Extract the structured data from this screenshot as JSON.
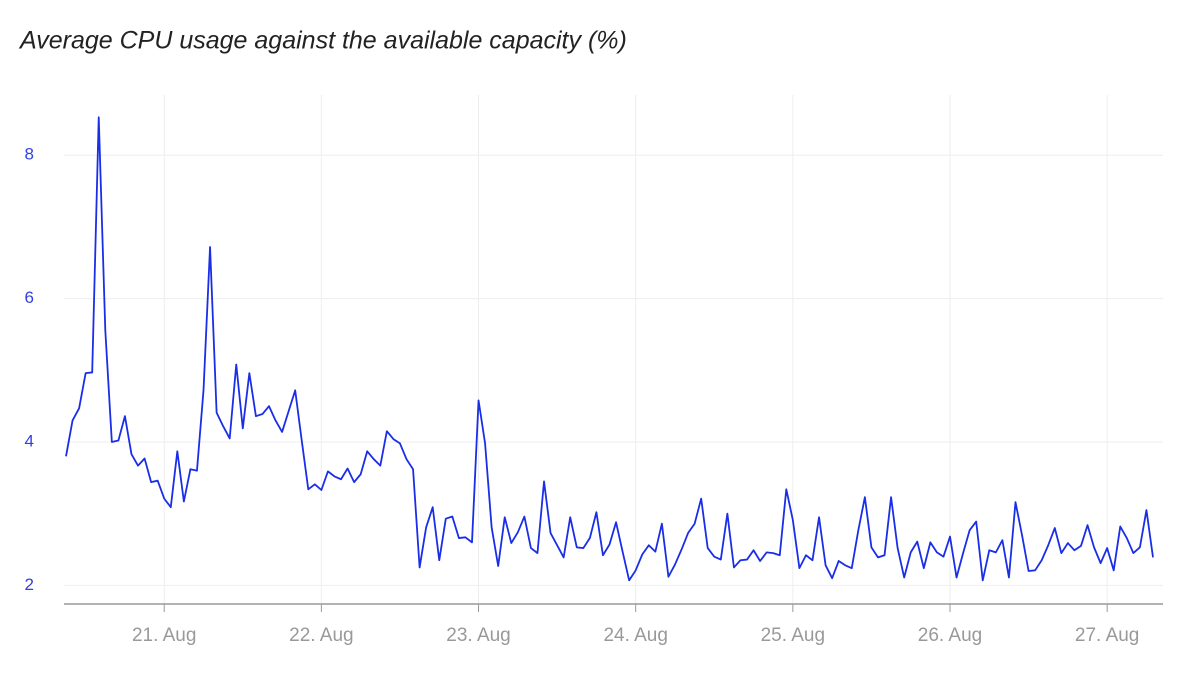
{
  "chart_data": {
    "type": "line",
    "title": "Average CPU usage against the available capacity (%)",
    "categories": [
      null,
      null,
      null,
      null,
      null,
      null,
      null,
      null,
      null,
      null,
      null,
      null,
      null,
      null,
      null,
      "21. Aug",
      null,
      null,
      null,
      null,
      null,
      null,
      null,
      null,
      null,
      null,
      null,
      null,
      null,
      null,
      null,
      null,
      null,
      null,
      null,
      null,
      null,
      null,
      null,
      "22. Aug",
      null,
      null,
      null,
      null,
      null,
      null,
      null,
      null,
      null,
      null,
      null,
      null,
      null,
      null,
      null,
      null,
      null,
      null,
      null,
      null,
      null,
      null,
      null,
      "23. Aug",
      null,
      null,
      null,
      null,
      null,
      null,
      null,
      null,
      null,
      null,
      null,
      null,
      null,
      null,
      null,
      null,
      null,
      null,
      null,
      null,
      null,
      null,
      null,
      "24. Aug",
      null,
      null,
      null,
      null,
      null,
      null,
      null,
      null,
      null,
      null,
      null,
      null,
      null,
      null,
      null,
      null,
      null,
      null,
      null,
      null,
      null,
      null,
      null,
      "25. Aug",
      null,
      null,
      null,
      null,
      null,
      null,
      null,
      null,
      null,
      null,
      null,
      null,
      null,
      null,
      null,
      null,
      null,
      null,
      null,
      null,
      null,
      null,
      null,
      "26. Aug",
      null,
      null,
      null,
      null,
      null,
      null,
      null,
      null,
      null,
      null,
      null,
      null,
      null,
      null,
      null,
      null,
      null,
      null,
      null,
      null,
      null,
      null,
      null,
      "27. Aug",
      null,
      null,
      null,
      null,
      null,
      null,
      null
    ],
    "values": [
      3.8,
      4.3,
      4.47,
      4.96,
      4.97,
      8.53,
      5.56,
      4.0,
      4.02,
      4.36,
      3.83,
      3.67,
      3.77,
      3.44,
      3.46,
      3.21,
      3.09,
      3.87,
      3.17,
      3.62,
      3.6,
      4.72,
      6.72,
      4.41,
      4.22,
      4.05,
      5.08,
      4.19,
      4.96,
      4.36,
      4.39,
      4.5,
      4.3,
      4.14,
      4.43,
      4.72,
      4.02,
      3.34,
      3.41,
      3.33,
      3.59,
      3.52,
      3.48,
      3.63,
      3.44,
      3.55,
      3.87,
      3.76,
      3.67,
      4.15,
      4.04,
      3.98,
      3.76,
      3.62,
      2.25,
      2.81,
      3.09,
      2.35,
      2.93,
      2.96,
      2.66,
      2.67,
      2.6,
      4.58,
      3.98,
      2.81,
      2.27,
      2.95,
      2.59,
      2.74,
      2.96,
      2.52,
      2.45,
      3.45,
      2.73,
      2.56,
      2.39,
      2.95,
      2.53,
      2.52,
      2.66,
      3.02,
      2.42,
      2.57,
      2.88,
      2.47,
      2.07,
      2.21,
      2.43,
      2.56,
      2.47,
      2.86,
      2.12,
      2.29,
      2.5,
      2.73,
      2.86,
      3.21,
      2.52,
      2.4,
      2.36,
      3.0,
      2.25,
      2.35,
      2.36,
      2.49,
      2.34,
      2.46,
      2.45,
      2.42,
      3.34,
      2.91,
      2.24,
      2.42,
      2.35,
      2.95,
      2.28,
      2.1,
      2.34,
      2.28,
      2.24,
      2.77,
      3.23,
      2.53,
      2.39,
      2.42,
      3.23,
      2.52,
      2.11,
      2.46,
      2.61,
      2.24,
      2.6,
      2.46,
      2.4,
      2.68,
      2.11,
      2.45,
      2.77,
      2.89,
      2.07,
      2.49,
      2.46,
      2.63,
      2.11,
      3.16,
      2.7,
      2.2,
      2.21,
      2.35,
      2.56,
      2.8,
      2.45,
      2.59,
      2.49,
      2.55,
      2.84,
      2.53,
      2.31,
      2.52,
      2.21,
      2.82,
      2.66,
      2.45,
      2.53,
      3.05,
      2.39
    ],
    "color": "#1a2ee8",
    "ylim": [
      1.74,
      8.84
    ],
    "yticks": [
      2,
      4,
      6,
      8
    ],
    "grid": true
  }
}
